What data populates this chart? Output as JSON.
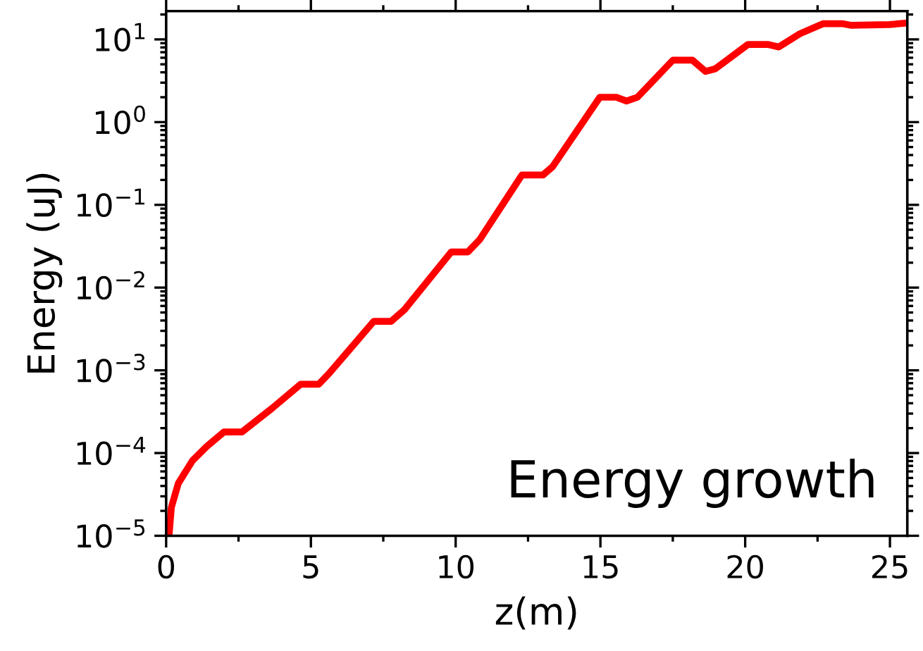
{
  "chart_data": {
    "type": "line",
    "xlabel": "z(m)",
    "ylabel": "Energy (uJ)",
    "log": "y",
    "xlim": [
      0,
      25.6
    ],
    "xticks": [
      0,
      5,
      10,
      15,
      20,
      25
    ],
    "ylim": [
      1e-05,
      22
    ],
    "yticks": [
      {
        "value": 1e-05,
        "label": "10$^{−5}$"
      },
      {
        "value": 0.0001,
        "label": "10$^{−4}$"
      },
      {
        "value": 0.001,
        "label": "10$^{−3}$"
      },
      {
        "value": 0.01,
        "label": "10$^{−2}$"
      },
      {
        "value": 0.1,
        "label": "10$^{−1}$"
      },
      {
        "value": 1,
        "label": "10$^{0}$"
      },
      {
        "value": 10,
        "label": "10$^{1}$"
      }
    ],
    "grid": false,
    "legend": false,
    "marker": "none",
    "line_style": "solid",
    "annotations": [
      "Energy growth"
    ],
    "series": [
      {
        "color": "#ff0000",
        "x": [
          0.1,
          0.18,
          0.42,
          0.91,
          1.4,
          2.0,
          2.62,
          3.67,
          4.65,
          5.27,
          5.62,
          7.17,
          7.77,
          8.23,
          9.85,
          10.42,
          10.83,
          12.29,
          13.02,
          13.35,
          14.98,
          15.55,
          15.9,
          16.28,
          17.5,
          18.18,
          18.63,
          18.96,
          20.1,
          20.78,
          21.16,
          21.89,
          22.7,
          23.35,
          23.67,
          24.98,
          25.6
        ],
        "values": [
          1e-05,
          2.2e-05,
          4.3e-05,
          8.1e-05,
          0.00012,
          0.00018,
          0.00018,
          0.00035,
          0.00068,
          0.00068,
          0.00091,
          0.0039,
          0.0039,
          0.0054,
          0.027,
          0.027,
          0.038,
          0.23,
          0.23,
          0.29,
          2.0,
          2.0,
          1.8,
          2.0,
          5.6,
          5.6,
          4.1,
          4.4,
          8.7,
          8.7,
          8.1,
          11.7,
          15.5,
          15.5,
          14.8,
          15.1,
          15.8
        ]
      }
    ]
  }
}
